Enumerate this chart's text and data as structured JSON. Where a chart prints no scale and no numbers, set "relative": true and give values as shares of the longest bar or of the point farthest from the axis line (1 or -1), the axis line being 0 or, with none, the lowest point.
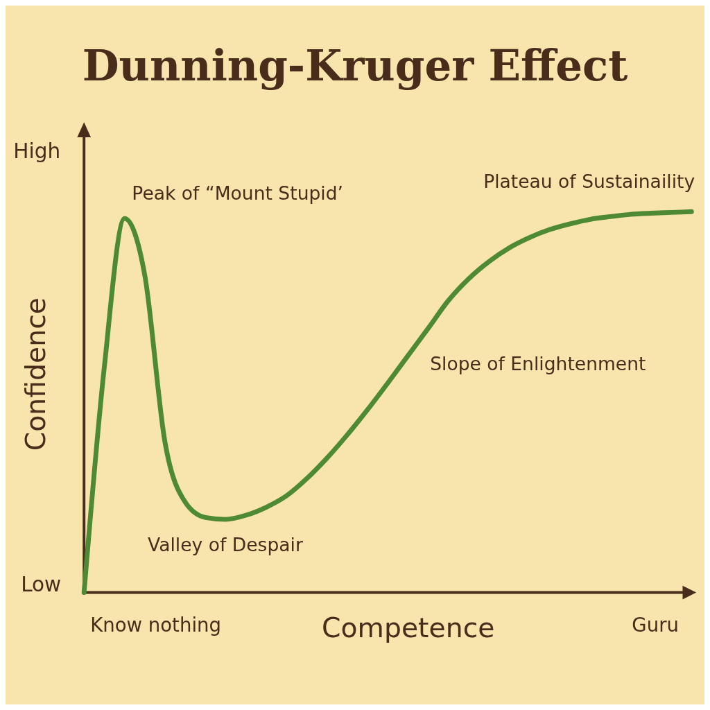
{
  "chart_data": {
    "type": "line",
    "title": "Dunning-Kruger Effect",
    "xlabel": "Competence",
    "ylabel": "Confidence",
    "relative": true,
    "categories": [
      null,
      null,
      null,
      null,
      null,
      null,
      null,
      null,
      null,
      null,
      null,
      null,
      null,
      null,
      null,
      null,
      null,
      null,
      null,
      null,
      null,
      null,
      null,
      null,
      null,
      null,
      null,
      null,
      null,
      null,
      null
    ],
    "values": [
      0,
      0.591,
      0.982,
      0.833,
      0.394,
      0.237,
      0.197,
      0.192,
      0.203,
      0.224,
      0.254,
      0.299,
      0.353,
      0.414,
      0.48,
      0.55,
      0.622,
      0.694,
      0.767,
      0.824,
      0.869,
      0.905,
      0.932,
      0.953,
      0.968,
      0.98,
      0.987,
      0.993,
      0.996,
      0.998,
      1
    ],
    "color": "#4e8a34",
    "annotations": [
      "Peak of “Mount Stupid’",
      "Plateau of Sustainaility",
      "Slope of Enlightenment",
      "Valley of Despair",
      "High",
      "Low",
      "Know nothing",
      "Guru"
    ]
  }
}
